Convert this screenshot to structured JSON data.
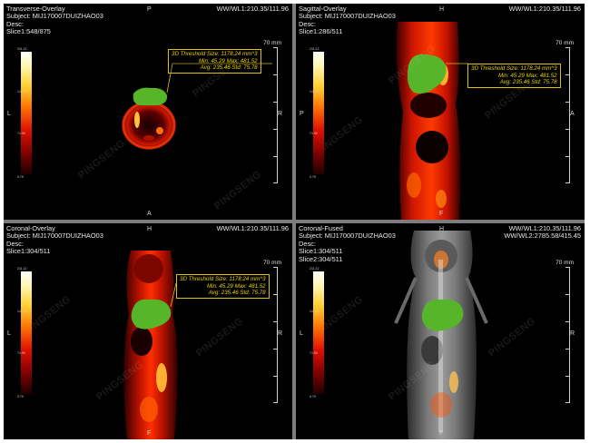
{
  "window_wl": "WW/WL1:210.35/111.96",
  "window_wl2": "WW/WL2:2785.58/415.45",
  "subject": "Subject: MIJ170007DUIZHAO03",
  "desc": "Desc:",
  "ruler_label": "70 mm",
  "watermark": "PINGSENG",
  "colorbar_ticks": [
    "211.12",
    "147.82",
    "74.90",
    "0.79"
  ],
  "stats": {
    "line1": "3D Threshold Size: 1178.24 mm^3",
    "line2": "Min: 45.29 Max: 481.52",
    "line3": "Avg: 235.46 Std: 75.78"
  },
  "panes": [
    {
      "title": "Transverse-Overlay",
      "slice": "Slice1:548/875",
      "top": "P",
      "bottom": "A",
      "left": "L",
      "right": "R"
    },
    {
      "title": "Sagittal-Overlay",
      "slice": "Slice1:286/511",
      "top": "H",
      "bottom": "F",
      "left": "P",
      "right": "A"
    },
    {
      "title": "Coronal-Overlay",
      "slice": "Slice1:304/511",
      "top": "H",
      "bottom": "F",
      "left": "L",
      "right": "R"
    },
    {
      "title": "Coronal-Fused",
      "slice": "Slice1:304/511",
      "slice2": "Slice2:304/511",
      "top": "H",
      "bottom": "F",
      "left": "L",
      "right": "R"
    }
  ],
  "colors": {
    "pet_hot": "#ff2000",
    "roi": "#57b52a",
    "annotation": "#e0c000"
  }
}
